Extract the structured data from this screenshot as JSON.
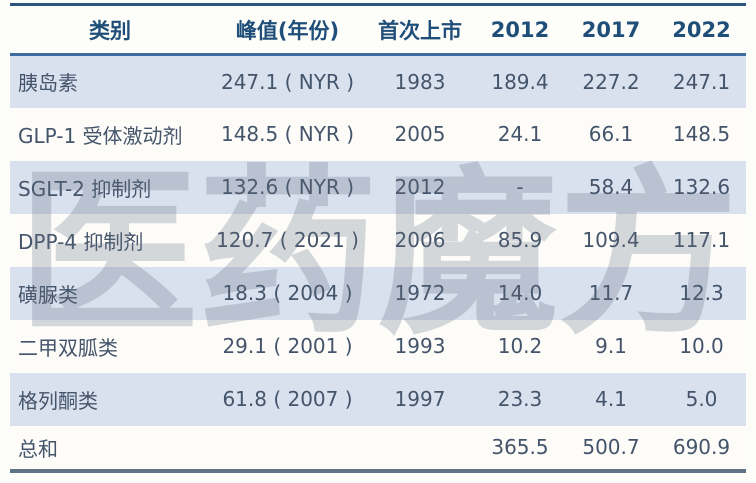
{
  "watermark": {
    "text": "医药魔方"
  },
  "colors": {
    "header_text": "#1f4e79",
    "body_text": "#44546a",
    "alt_row_bg": "#d9e1ef",
    "top_border": "#2b5580",
    "header_separator": "#3f6b9e",
    "bottom_border": "#5e7386"
  },
  "chart_data": {
    "type": "table",
    "columns": [
      "类别",
      "峰值(年份)",
      "首次上市",
      "2012",
      "2017",
      "2022"
    ],
    "rows": [
      {
        "cells": [
          "胰岛素",
          "247.1 ( NYR )",
          "1983",
          "189.4",
          "227.2",
          "247.1"
        ],
        "alt": true,
        "total": false
      },
      {
        "cells": [
          "GLP-1 受体激动剂",
          "148.5 ( NYR )",
          "2005",
          "24.1",
          "66.1",
          "148.5"
        ],
        "alt": false,
        "total": false
      },
      {
        "cells": [
          "SGLT-2 抑制剂",
          "132.6 ( NYR )",
          "2012",
          "-",
          "58.4",
          "132.6"
        ],
        "alt": true,
        "total": false
      },
      {
        "cells": [
          "DPP-4 抑制剂",
          "120.7 ( 2021 )",
          "2006",
          "85.9",
          "109.4",
          "117.1"
        ],
        "alt": false,
        "total": false
      },
      {
        "cells": [
          "磺脲类",
          "18.3 ( 2004 )",
          "1972",
          "14.0",
          "11.7",
          "12.3"
        ],
        "alt": true,
        "total": false
      },
      {
        "cells": [
          "二甲双胍类",
          "29.1 ( 2001 )",
          "1993",
          "10.2",
          "9.1",
          "10.0"
        ],
        "alt": false,
        "total": false
      },
      {
        "cells": [
          "格列酮类",
          "61.8 ( 2007 )",
          "1997",
          "23.3",
          "4.1",
          "5.0"
        ],
        "alt": true,
        "total": false
      },
      {
        "cells": [
          "总和",
          "",
          "",
          "365.5",
          "500.7",
          "690.9"
        ],
        "alt": false,
        "total": true
      }
    ]
  }
}
